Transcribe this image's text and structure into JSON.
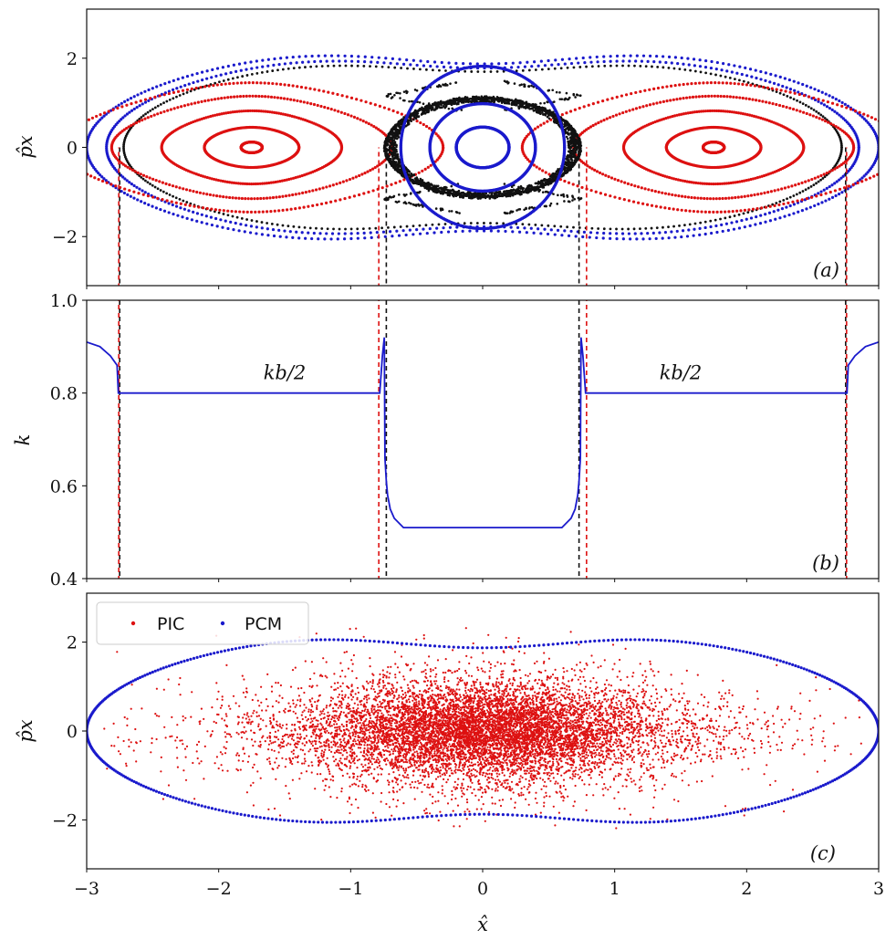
{
  "figure": {
    "colors": {
      "red": "#dd1111",
      "blue": "#1a1acc",
      "black": "#111111",
      "darkred": "#8b0000"
    },
    "x_axis": {
      "label": "x̂",
      "ticks": [
        "−3",
        "−2",
        "−1",
        "0",
        "1",
        "2",
        "3"
      ],
      "lim": [
        -3,
        3
      ]
    }
  },
  "chart_data": [
    {
      "panel": "a",
      "type": "scatter",
      "panel_label": "(a)",
      "ylabel": "p̂x",
      "xlim": [
        -3,
        3
      ],
      "ylim": [
        -3.1,
        3.1
      ],
      "yticks": [
        "2",
        "0",
        "−2"
      ],
      "ytick_values": [
        2,
        0,
        -2
      ],
      "series": [
        {
          "name": "red islands (left)",
          "color": "red",
          "center_x": -1.75,
          "center_y": 0,
          "orbits": [
            [
              0.08,
              0.12
            ],
            [
              0.32,
              0.45
            ],
            [
              0.55,
              0.82
            ],
            [
              0.78,
              1.15
            ],
            [
              0.98,
              1.45
            ]
          ]
        },
        {
          "name": "red islands (right)",
          "color": "red",
          "center_x": 1.75,
          "center_y": 0,
          "orbits": [
            [
              0.08,
              0.12
            ],
            [
              0.32,
              0.45
            ],
            [
              0.55,
              0.82
            ],
            [
              0.78,
              1.15
            ],
            [
              0.98,
              1.45
            ]
          ]
        },
        {
          "name": "blue core",
          "color": "blue",
          "center_x": 0,
          "center_y": 0,
          "orbits": [
            [
              0.2,
              0.13
            ],
            [
              0.4,
              0.28
            ],
            [
              0.62,
              0.52
            ]
          ]
        },
        {
          "name": "black separatrix",
          "color": "black",
          "x_points": [
            -0.75,
            0.75
          ],
          "p_max": 1.2
        },
        {
          "name": "outer orbits",
          "colors": [
            "black",
            "blue",
            "blue"
          ],
          "amplitudes": [
            2.72,
            2.85,
            3.0
          ]
        }
      ],
      "vlines_black": [
        -2.75,
        -0.73,
        0.73,
        2.75
      ],
      "vlines_red": [
        -2.75,
        -0.78,
        0.78,
        2.75
      ]
    },
    {
      "panel": "b",
      "type": "line",
      "panel_label": "(b)",
      "ylabel": "k",
      "xlim": [
        -3,
        3
      ],
      "ylim": [
        0.4,
        1.0
      ],
      "yticks": [
        "1.0",
        "0.8",
        "0.6",
        "0.4"
      ],
      "ytick_values": [
        1.0,
        0.8,
        0.6,
        0.4
      ],
      "annotation": "kb/2",
      "annotation_x": [
        -1.5,
        1.5
      ],
      "annotation_y": 0.83,
      "series": [
        {
          "name": "k",
          "color": "blue",
          "x": [
            -3.0,
            -2.9,
            -2.82,
            -2.77,
            -2.76,
            -2.74,
            -0.8,
            -0.78,
            -0.76,
            -0.745,
            -0.74,
            -0.73,
            -0.72,
            -0.7,
            -0.67,
            -0.6,
            0.6,
            0.67,
            0.7,
            0.72,
            0.73,
            0.74,
            0.745,
            0.76,
            0.78,
            0.8,
            2.74,
            2.76,
            2.77,
            2.82,
            2.9,
            3.0
          ],
          "y": [
            0.91,
            0.9,
            0.88,
            0.86,
            0.8,
            0.8,
            0.8,
            0.8,
            0.88,
            0.92,
            0.66,
            0.61,
            0.58,
            0.55,
            0.53,
            0.51,
            0.51,
            0.53,
            0.55,
            0.58,
            0.61,
            0.66,
            0.92,
            0.88,
            0.8,
            0.8,
            0.8,
            0.8,
            0.86,
            0.88,
            0.9,
            0.91
          ]
        }
      ],
      "vlines_black": [
        -2.75,
        -0.73,
        0.73,
        2.75
      ],
      "vlines_red": [
        -2.75,
        -0.78,
        0.78,
        2.75
      ]
    },
    {
      "panel": "c",
      "type": "scatter",
      "panel_label": "(c)",
      "ylabel": "p̂x",
      "xlim": [
        -3,
        3
      ],
      "ylim": [
        -3.1,
        3.1
      ],
      "yticks": [
        "2",
        "0",
        "−2"
      ],
      "ytick_values": [
        2,
        0,
        -2
      ],
      "legend": {
        "location": "top-left",
        "entries": [
          {
            "label": "PIC",
            "color": "red"
          },
          {
            "label": "PCM",
            "color": "blue"
          }
        ]
      },
      "series": [
        {
          "name": "PIC",
          "color": "red",
          "distribution": "gaussian",
          "sigma_x": 0.85,
          "sigma_p": 0.62,
          "count": 9000
        },
        {
          "name": "PCM",
          "color": "blue",
          "boundary_amplitude": 3.0
        }
      ]
    }
  ]
}
